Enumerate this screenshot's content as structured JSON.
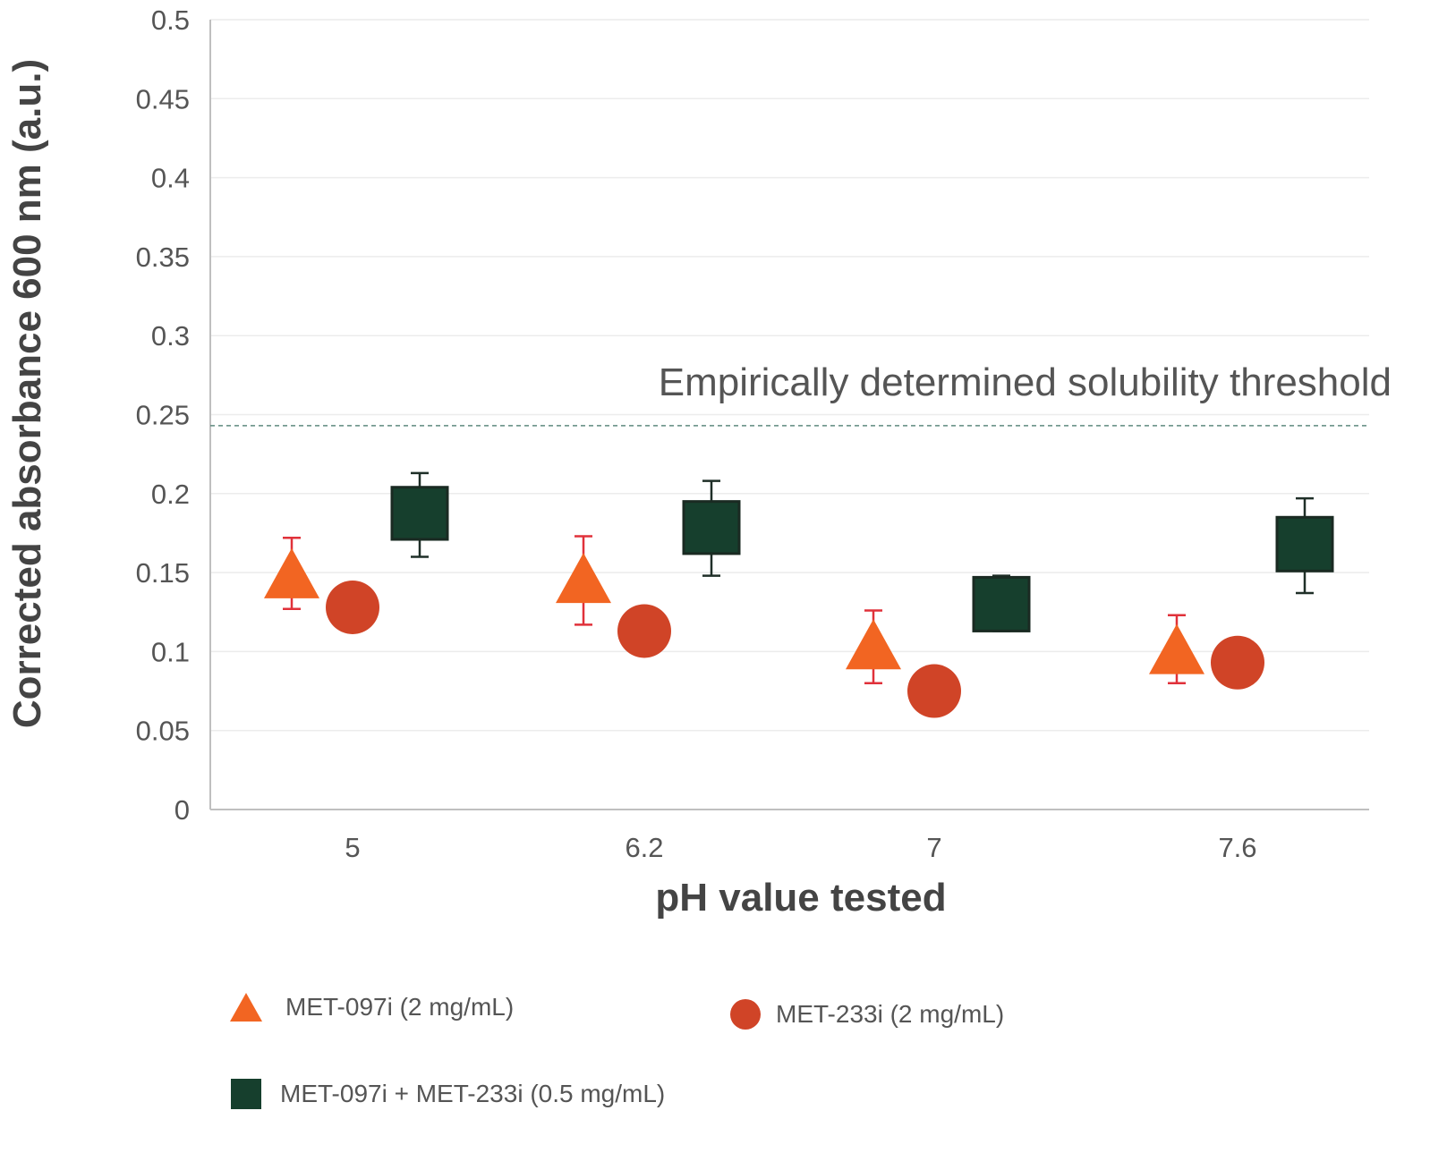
{
  "chart_data": {
    "type": "scatter",
    "title": "",
    "xlabel": "pH value tested",
    "ylabel": "Corrected absorbance 600 nm (a.u.)",
    "ylim": [
      0,
      0.5
    ],
    "yticks": [
      0,
      0.05,
      0.1,
      0.15,
      0.2,
      0.25,
      0.3,
      0.35,
      0.4,
      0.45,
      0.5
    ],
    "ytick_labels": [
      "0",
      "0.05",
      "0.1",
      "0.15",
      "0.2",
      "0.25",
      "0.3",
      "0.35",
      "0.4",
      "0.45",
      "0.5"
    ],
    "categories": [
      "5",
      "6.2",
      "7",
      "7.6"
    ],
    "grid": "horizontal",
    "legend_position": "bottom",
    "threshold": {
      "label": "Empirically determined solubility threshold",
      "value": 0.243,
      "color": "#5f8a7f"
    },
    "series": [
      {
        "name": "MET-097i (2 mg/mL)",
        "marker": "triangle",
        "color": "#f26522",
        "error_color": "#e0313a",
        "values": [
          0.148,
          0.145,
          0.103,
          0.1
        ],
        "error_low": [
          0.127,
          0.117,
          0.08,
          0.08
        ],
        "error_high": [
          0.172,
          0.173,
          0.126,
          0.123
        ]
      },
      {
        "name": "MET-233i (2 mg/mL)",
        "marker": "circle",
        "color": "#d04427",
        "error_color": "#d04427",
        "values": [
          0.128,
          0.113,
          0.075,
          0.093
        ],
        "error_low": [
          null,
          null,
          null,
          null
        ],
        "error_high": [
          null,
          null,
          null,
          null
        ]
      },
      {
        "name": "MET-097i + MET-233i (0.5 mg/mL)",
        "marker": "square",
        "color": "#163f2d",
        "error_color": "#1f2f28",
        "values": [
          0.188,
          0.178,
          0.13,
          0.168
        ],
        "box_low": [
          0.171,
          0.162,
          0.113,
          0.151
        ],
        "box_high": [
          0.204,
          0.195,
          0.147,
          0.185
        ],
        "error_low": [
          0.16,
          0.148,
          0.113,
          0.137
        ],
        "error_high": [
          0.213,
          0.208,
          0.148,
          0.197
        ]
      }
    ]
  },
  "legend": {
    "items": [
      {
        "label": "MET-097i (2 mg/mL)",
        "icon": "triangle-icon",
        "color": "#f26522"
      },
      {
        "label": "MET-233i (2 mg/mL)",
        "icon": "circle-icon",
        "color": "#d04427"
      },
      {
        "label": "MET-097i + MET-233i (0.5 mg/mL)",
        "icon": "square-icon",
        "color": "#163f2d"
      }
    ]
  }
}
